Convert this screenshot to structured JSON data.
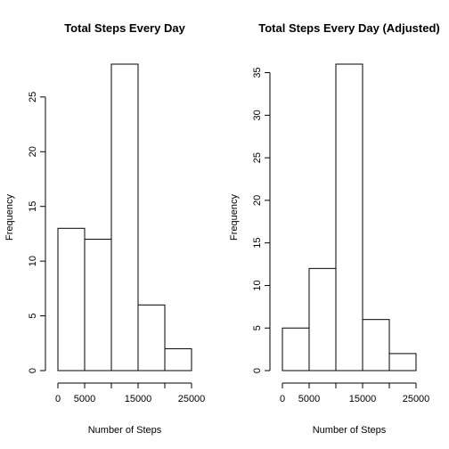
{
  "chart_data": [
    {
      "type": "bar",
      "title": "Total Steps Every Day",
      "xlabel": "Number of Steps",
      "ylabel": "Frequency",
      "bins": [
        [
          0,
          5000
        ],
        [
          5000,
          10000
        ],
        [
          10000,
          15000
        ],
        [
          15000,
          20000
        ],
        [
          20000,
          25000
        ]
      ],
      "values": [
        13,
        12,
        28,
        6,
        2
      ],
      "xlim": [
        0,
        25000
      ],
      "ylim": [
        0,
        28
      ],
      "xticks": [
        0,
        5000,
        10000,
        15000,
        20000,
        25000
      ],
      "xtick_labels": [
        "0",
        "5000",
        "",
        "15000",
        "",
        "25000"
      ],
      "yticks": [
        0,
        5,
        10,
        15,
        20,
        25
      ],
      "ytick_labels": [
        "0",
        "5",
        "10",
        "15",
        "20",
        "25"
      ],
      "grid": false,
      "legend": "none"
    },
    {
      "type": "bar",
      "title": "Total Steps Every Day (Adjusted)",
      "xlabel": "Number of Steps",
      "ylabel": "Frequency",
      "bins": [
        [
          0,
          5000
        ],
        [
          5000,
          10000
        ],
        [
          10000,
          15000
        ],
        [
          15000,
          20000
        ],
        [
          20000,
          25000
        ]
      ],
      "values": [
        5,
        12,
        36,
        6,
        2
      ],
      "xlim": [
        0,
        25000
      ],
      "ylim": [
        0,
        36
      ],
      "xticks": [
        0,
        5000,
        10000,
        15000,
        20000,
        25000
      ],
      "xtick_labels": [
        "0",
        "5000",
        "",
        "15000",
        "",
        "25000"
      ],
      "yticks": [
        0,
        5,
        10,
        15,
        20,
        25,
        30,
        35
      ],
      "ytick_labels": [
        "0",
        "5",
        "10",
        "15",
        "20",
        "25",
        "30",
        "35"
      ],
      "grid": false,
      "legend": "none"
    }
  ]
}
